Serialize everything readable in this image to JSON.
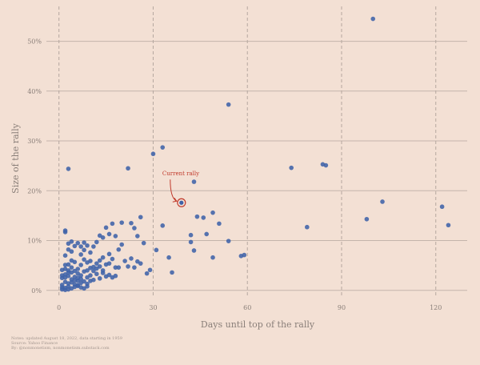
{
  "chart_data": {
    "type": "scatter",
    "title": "",
    "xlabel": "Days until top of the rally",
    "ylabel": "Size of the rally",
    "xlim": [
      -4,
      130
    ],
    "ylim": [
      -1,
      57
    ],
    "xticks": [
      0,
      30,
      60,
      90,
      120
    ],
    "xtick_labels": [
      "0",
      "30",
      "60",
      "90",
      "120"
    ],
    "yticks": [
      0,
      10,
      20,
      30,
      40,
      50
    ],
    "ytick_labels": [
      "0%",
      "10%",
      "20%",
      "30%",
      "40%",
      "50%"
    ],
    "grid": "horizontal solid, vertical dashed",
    "point_color": "#3f62a8",
    "highlight_color": "#c0392b",
    "annotation": "Current rally",
    "highlight": {
      "x": 39,
      "y": 17.6
    },
    "notes": [
      "Notes: updated August 18, 2022, data starting in 1959",
      "Source: Yahoo Finance",
      "By: @nonmonetism, nonmonetism.substack.com"
    ],
    "series": [
      {
        "points": [
          [
            100,
            54.5
          ],
          [
            54,
            37.3
          ],
          [
            33,
            28.7
          ],
          [
            30,
            27.4
          ],
          [
            3,
            24.4
          ],
          [
            22,
            24.5
          ],
          [
            74,
            24.6
          ],
          [
            84,
            25.3
          ],
          [
            85,
            25.1
          ],
          [
            43,
            21.8
          ],
          [
            103,
            17.8
          ],
          [
            122,
            16.8
          ],
          [
            124,
            13.1
          ],
          [
            98,
            14.3
          ],
          [
            79,
            12.7
          ],
          [
            49,
            15.6
          ],
          [
            46,
            14.6
          ],
          [
            44,
            14.8
          ],
          [
            51,
            13.4
          ],
          [
            26,
            14.7
          ],
          [
            33,
            13.0
          ],
          [
            42,
            11.1
          ],
          [
            47,
            11.3
          ],
          [
            54,
            9.9
          ],
          [
            42,
            9.7
          ],
          [
            43,
            8.0
          ],
          [
            49,
            6.6
          ],
          [
            58,
            6.9
          ],
          [
            59,
            7.1
          ],
          [
            31,
            8.1
          ],
          [
            35,
            6.6
          ],
          [
            29,
            4.1
          ],
          [
            28,
            3.4
          ],
          [
            36,
            3.6
          ],
          [
            27,
            9.5
          ],
          [
            24,
            12.5
          ],
          [
            25,
            10.9
          ],
          [
            23,
            13.5
          ],
          [
            20,
            13.6
          ],
          [
            18,
            10.9
          ],
          [
            17,
            13.4
          ],
          [
            16,
            11.3
          ],
          [
            15,
            12.6
          ],
          [
            14,
            10.6
          ],
          [
            13,
            11.0
          ],
          [
            12,
            9.7
          ],
          [
            11,
            8.8
          ],
          [
            10,
            7.6
          ],
          [
            9,
            9.0
          ],
          [
            8,
            9.6
          ],
          [
            8,
            8.1
          ],
          [
            7,
            7.2
          ],
          [
            7,
            8.8
          ],
          [
            6,
            9.5
          ],
          [
            5,
            8.9
          ],
          [
            4,
            9.8
          ],
          [
            3,
            9.4
          ],
          [
            2,
            11.7
          ],
          [
            2,
            12.0
          ],
          [
            3,
            8.2
          ],
          [
            4,
            7.8
          ],
          [
            2,
            7.0
          ],
          [
            20,
            9.2
          ],
          [
            19,
            8.2
          ],
          [
            21,
            5.9
          ],
          [
            22,
            4.8
          ],
          [
            23,
            6.4
          ],
          [
            25,
            5.8
          ],
          [
            26,
            5.4
          ],
          [
            24,
            4.6
          ],
          [
            18,
            4.6
          ],
          [
            17,
            6.3
          ],
          [
            16,
            7.3
          ],
          [
            15,
            5.2
          ],
          [
            14,
            6.6
          ],
          [
            13,
            6.0
          ],
          [
            12,
            5.4
          ],
          [
            11,
            4.7
          ],
          [
            10,
            5.9
          ],
          [
            9,
            5.6
          ],
          [
            8,
            6.2
          ],
          [
            7,
            5.1
          ],
          [
            6,
            4.3
          ],
          [
            5,
            5.7
          ],
          [
            4,
            6.0
          ],
          [
            3,
            5.2
          ],
          [
            2,
            5.1
          ],
          [
            14,
            3.5
          ],
          [
            15,
            2.8
          ],
          [
            16,
            3.1
          ],
          [
            13,
            2.4
          ],
          [
            12,
            3.3
          ],
          [
            11,
            2.1
          ],
          [
            10,
            3.0
          ],
          [
            9,
            2.6
          ],
          [
            8,
            3.8
          ],
          [
            7,
            2.3
          ],
          [
            6,
            3.4
          ],
          [
            5,
            2.7
          ],
          [
            4,
            3.6
          ],
          [
            3,
            2.9
          ],
          [
            2,
            3.2
          ],
          [
            1,
            2.5
          ],
          [
            1,
            4.1
          ],
          [
            2,
            4.3
          ],
          [
            3,
            4.0
          ],
          [
            4,
            4.6
          ],
          [
            5,
            3.9
          ],
          [
            6,
            1.9
          ],
          [
            7,
            1.5
          ],
          [
            8,
            1.8
          ],
          [
            9,
            1.3
          ],
          [
            10,
            1.9
          ],
          [
            6,
            1.0
          ],
          [
            5,
            1.2
          ],
          [
            4,
            1.6
          ],
          [
            3,
            1.4
          ],
          [
            2,
            1.7
          ],
          [
            1,
            1.1
          ],
          [
            1,
            0.6
          ],
          [
            2,
            0.5
          ],
          [
            3,
            0.8
          ],
          [
            4,
            0.4
          ],
          [
            5,
            0.7
          ],
          [
            1,
            0.2
          ],
          [
            2,
            0.1
          ],
          [
            6,
            0.9
          ],
          [
            7,
            0.6
          ],
          [
            8,
            0.4
          ],
          [
            9,
            0.8
          ],
          [
            3,
            0.2
          ],
          [
            4,
            2.2
          ],
          [
            5,
            2.0
          ],
          [
            6,
            2.5
          ],
          [
            7,
            3.0
          ],
          [
            1,
            3.0
          ],
          [
            2,
            2.6
          ],
          [
            3,
            3.6
          ],
          [
            11,
            3.9
          ],
          [
            12,
            4.4
          ],
          [
            13,
            4.8
          ],
          [
            14,
            4.0
          ],
          [
            10,
            4.5
          ],
          [
            9,
            4.0
          ],
          [
            17,
            2.6
          ],
          [
            19,
            4.6
          ],
          [
            18,
            2.9
          ],
          [
            16,
            5.4
          ]
        ]
      }
    ]
  }
}
